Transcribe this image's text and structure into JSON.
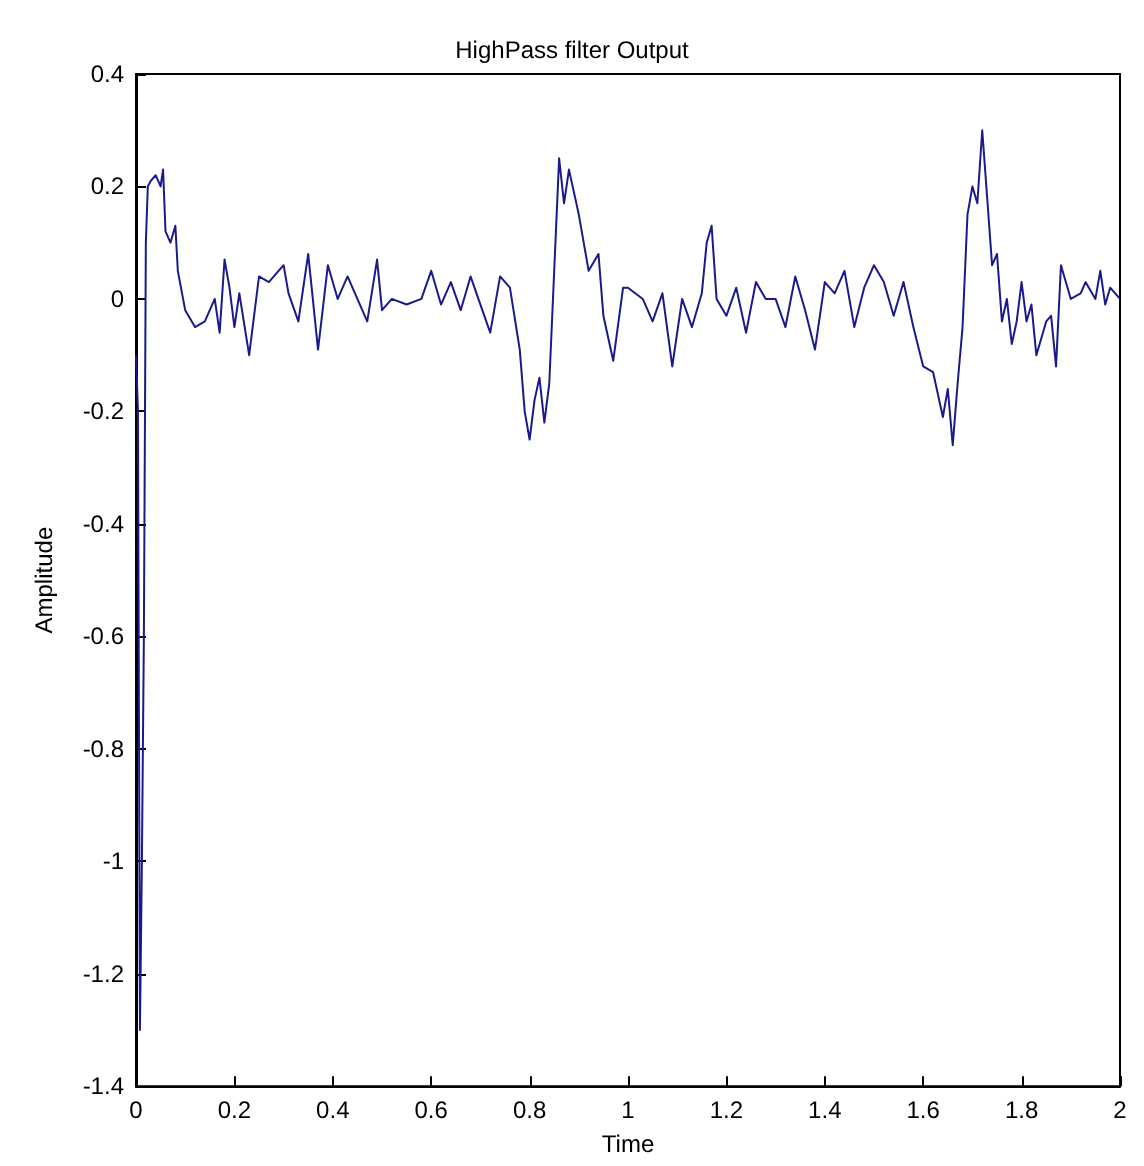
{
  "chart_data": {
    "type": "line",
    "title": "HighPass filter Output",
    "xlabel": "Time",
    "ylabel": "Amplitude",
    "xlim": [
      0,
      2
    ],
    "xticks": [
      0,
      0.2,
      0.4,
      0.6,
      0.8,
      1,
      1.2,
      1.4,
      1.6,
      1.8,
      2
    ],
    "ylim": [
      -1.4,
      0.4
    ],
    "yticks": [
      -1.4,
      -1.2,
      -1,
      -0.8,
      -0.6,
      -0.4,
      -0.2,
      0,
      0.2,
      0.4
    ],
    "grid": false,
    "marker": "none",
    "line_style": "solid",
    "series": [
      {
        "color": "#1a1a8c",
        "x": [
          0,
          0.004,
          0.008,
          0.012,
          0.016,
          0.02,
          0.024,
          0.03,
          0.04,
          0.05,
          0.055,
          0.06,
          0.07,
          0.08,
          0.085,
          0.1,
          0.12,
          0.14,
          0.16,
          0.17,
          0.18,
          0.19,
          0.2,
          0.21,
          0.23,
          0.25,
          0.27,
          0.3,
          0.31,
          0.33,
          0.35,
          0.37,
          0.39,
          0.41,
          0.43,
          0.45,
          0.47,
          0.49,
          0.5,
          0.52,
          0.55,
          0.58,
          0.6,
          0.62,
          0.64,
          0.66,
          0.68,
          0.7,
          0.72,
          0.74,
          0.76,
          0.78,
          0.79,
          0.8,
          0.81,
          0.82,
          0.83,
          0.84,
          0.85,
          0.86,
          0.87,
          0.88,
          0.9,
          0.92,
          0.94,
          0.95,
          0.97,
          0.99,
          1.0,
          1.03,
          1.05,
          1.07,
          1.09,
          1.11,
          1.13,
          1.15,
          1.16,
          1.17,
          1.18,
          1.2,
          1.22,
          1.24,
          1.26,
          1.28,
          1.3,
          1.32,
          1.34,
          1.36,
          1.38,
          1.4,
          1.42,
          1.44,
          1.46,
          1.48,
          1.5,
          1.52,
          1.54,
          1.56,
          1.58,
          1.6,
          1.62,
          1.64,
          1.65,
          1.66,
          1.67,
          1.68,
          1.69,
          1.7,
          1.71,
          1.72,
          1.73,
          1.74,
          1.75,
          1.76,
          1.77,
          1.78,
          1.79,
          1.8,
          1.81,
          1.82,
          1.83,
          1.85,
          1.86,
          1.87,
          1.88,
          1.9,
          1.92,
          1.93,
          1.95,
          1.96,
          1.97,
          1.98,
          2.0
        ],
        "values": [
          -0.1,
          -0.2,
          -1.3,
          -1.0,
          -0.6,
          0.1,
          0.2,
          0.21,
          0.22,
          0.2,
          0.23,
          0.12,
          0.1,
          0.13,
          0.05,
          -0.02,
          -0.05,
          -0.04,
          0.0,
          -0.06,
          0.07,
          0.02,
          -0.05,
          0.01,
          -0.1,
          0.04,
          0.03,
          0.06,
          0.01,
          -0.04,
          0.08,
          -0.09,
          0.06,
          0.0,
          0.04,
          0.0,
          -0.04,
          0.07,
          -0.02,
          0.0,
          -0.01,
          0.0,
          0.05,
          -0.01,
          0.03,
          -0.02,
          0.04,
          -0.01,
          -0.06,
          0.04,
          0.02,
          -0.09,
          -0.2,
          -0.25,
          -0.18,
          -0.14,
          -0.22,
          -0.15,
          0.05,
          0.25,
          0.17,
          0.23,
          0.15,
          0.05,
          0.08,
          -0.03,
          -0.11,
          0.02,
          0.02,
          0.0,
          -0.04,
          0.01,
          -0.12,
          0.0,
          -0.05,
          0.01,
          0.1,
          0.13,
          0.0,
          -0.03,
          0.02,
          -0.06,
          0.03,
          0.0,
          0.0,
          -0.05,
          0.04,
          -0.02,
          -0.09,
          0.03,
          0.01,
          0.05,
          -0.05,
          0.02,
          0.06,
          0.03,
          -0.03,
          0.03,
          -0.05,
          -0.12,
          -0.13,
          -0.21,
          -0.16,
          -0.26,
          -0.15,
          -0.05,
          0.15,
          0.2,
          0.17,
          0.3,
          0.18,
          0.06,
          0.08,
          -0.04,
          0.0,
          -0.08,
          -0.04,
          0.03,
          -0.04,
          -0.01,
          -0.1,
          -0.04,
          -0.03,
          -0.12,
          0.06,
          0.0,
          0.01,
          0.03,
          0.0,
          0.05,
          -0.01,
          0.02,
          0.0
        ]
      }
    ]
  }
}
